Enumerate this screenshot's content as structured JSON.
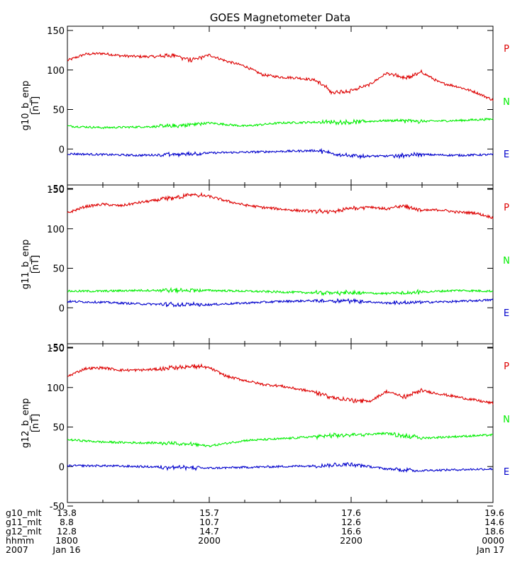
{
  "colors": {
    "P": "#dd0000",
    "N": "#00ee00",
    "E": "#0000cc",
    "axis": "#000000"
  },
  "chart_data": {
    "type": "line",
    "title": "GOES Magnetometer Data",
    "x_hours_range": [
      18,
      24
    ],
    "x_ticks": [
      18,
      20,
      22,
      24
    ],
    "ylim": [
      -50,
      150
    ],
    "y_ticks": [
      -50,
      0,
      50,
      100,
      150
    ],
    "y_tick_labels": [
      "-50",
      "0",
      "50",
      "100",
      "150"
    ],
    "components": [
      "P",
      "N",
      "E"
    ],
    "panels": [
      {
        "ylabel": "g10_b_enp",
        "units": "[nT]",
        "series": [
          {
            "name": "P",
            "x": [
              18.0,
              18.25,
              18.5,
              18.75,
              19.0,
              19.25,
              19.5,
              19.75,
              20.0,
              20.25,
              20.5,
              20.75,
              21.0,
              21.25,
              21.5,
              21.75,
              22.0,
              22.25,
              22.5,
              22.75,
              23.0,
              23.25,
              23.5,
              23.75,
              24.0
            ],
            "values": [
              112,
              120,
              121,
              118,
              117,
              117,
              119,
              112,
              119,
              111,
              105,
              94,
              91,
              90,
              87,
              71,
              74,
              81,
              96,
              89,
              97,
              84,
              79,
              72,
              62
            ]
          },
          {
            "name": "N",
            "x": [
              18.0,
              18.5,
              19.0,
              19.5,
              20.0,
              20.5,
              21.0,
              21.5,
              22.0,
              22.5,
              23.0,
              23.5,
              24.0
            ],
            "values": [
              29,
              27,
              28,
              29,
              33,
              29,
              33,
              34,
              34,
              36,
              35,
              36,
              38
            ]
          },
          {
            "name": "E",
            "x": [
              18.0,
              18.5,
              19.0,
              19.5,
              20.0,
              20.5,
              21.0,
              21.5,
              22.0,
              22.5,
              23.0,
              23.5,
              24.0
            ],
            "values": [
              -6,
              -7,
              -8,
              -7,
              -5,
              -4,
              -3,
              -2,
              -9,
              -9,
              -7,
              -8,
              -7
            ]
          }
        ]
      },
      {
        "ylabel": "g11_b_enp",
        "units": "[nT]",
        "series": [
          {
            "name": "P",
            "x": [
              18.0,
              18.25,
              18.5,
              18.75,
              19.0,
              19.25,
              19.5,
              19.75,
              20.0,
              20.25,
              20.5,
              20.75,
              21.0,
              21.25,
              21.5,
              21.75,
              22.0,
              22.25,
              22.5,
              22.75,
              23.0,
              23.25,
              23.5,
              23.75,
              24.0
            ],
            "values": [
              120,
              128,
              131,
              129,
              133,
              136,
              139,
              143,
              141,
              135,
              130,
              127,
              125,
              123,
              122,
              121,
              126,
              128,
              125,
              129,
              123,
              124,
              121,
              120,
              114
            ]
          },
          {
            "name": "N",
            "x": [
              18.0,
              18.5,
              19.0,
              19.5,
              20.0,
              20.5,
              21.0,
              21.5,
              22.0,
              22.5,
              23.0,
              23.5,
              24.0
            ],
            "values": [
              21,
              21,
              22,
              22,
              22,
              21,
              20,
              19,
              19,
              18,
              20,
              22,
              21
            ]
          },
          {
            "name": "E",
            "x": [
              18.0,
              18.5,
              19.0,
              19.5,
              20.0,
              20.5,
              21.0,
              21.5,
              22.0,
              22.5,
              23.0,
              23.5,
              24.0
            ],
            "values": [
              8,
              7,
              5,
              4,
              4,
              6,
              8,
              9,
              9,
              6,
              7,
              8,
              10
            ]
          }
        ]
      },
      {
        "ylabel": "g12_b_enp",
        "units": "[nT]",
        "series": [
          {
            "name": "P",
            "x": [
              18.0,
              18.25,
              18.5,
              18.75,
              19.0,
              19.25,
              19.5,
              19.75,
              20.0,
              20.25,
              20.5,
              20.75,
              21.0,
              21.25,
              21.5,
              21.75,
              22.0,
              22.25,
              22.5,
              22.75,
              23.0,
              23.25,
              23.5,
              23.75,
              24.0
            ],
            "values": [
              114,
              124,
              125,
              122,
              122,
              123,
              125,
              127,
              125,
              114,
              109,
              104,
              102,
              98,
              94,
              87,
              84,
              82,
              95,
              88,
              96,
              92,
              88,
              84,
              80
            ]
          },
          {
            "name": "N",
            "x": [
              18.0,
              18.5,
              19.0,
              19.5,
              20.0,
              20.5,
              21.0,
              21.5,
              22.0,
              22.5,
              23.0,
              23.5,
              24.0
            ],
            "values": [
              34,
              31,
              30,
              30,
              26,
              33,
              35,
              38,
              40,
              42,
              36,
              38,
              40
            ]
          },
          {
            "name": "E",
            "x": [
              18.0,
              18.5,
              19.0,
              19.5,
              20.0,
              20.5,
              21.0,
              21.5,
              22.0,
              22.5,
              23.0,
              23.5,
              24.0
            ],
            "values": [
              1,
              1,
              0,
              -1,
              -2,
              -1,
              0,
              1,
              3,
              -3,
              -5,
              -4,
              -3
            ]
          }
        ]
      }
    ],
    "x_axis_table": {
      "row_labels": [
        "g10_mlt",
        "g11_mlt",
        "g12_mlt",
        "hhmm",
        "2007"
      ],
      "columns": [
        {
          "x": 18,
          "values": [
            "13.8",
            "8.8",
            "12.8",
            "1800",
            "Jan 16"
          ]
        },
        {
          "x": 20,
          "values": [
            "15.7",
            "10.7",
            "14.7",
            "2000",
            ""
          ]
        },
        {
          "x": 22,
          "values": [
            "17.6",
            "12.6",
            "16.6",
            "2200",
            ""
          ]
        },
        {
          "x": 24,
          "values": [
            "19.6",
            "14.6",
            "18.6",
            "0000",
            "Jan 17"
          ]
        }
      ]
    }
  }
}
